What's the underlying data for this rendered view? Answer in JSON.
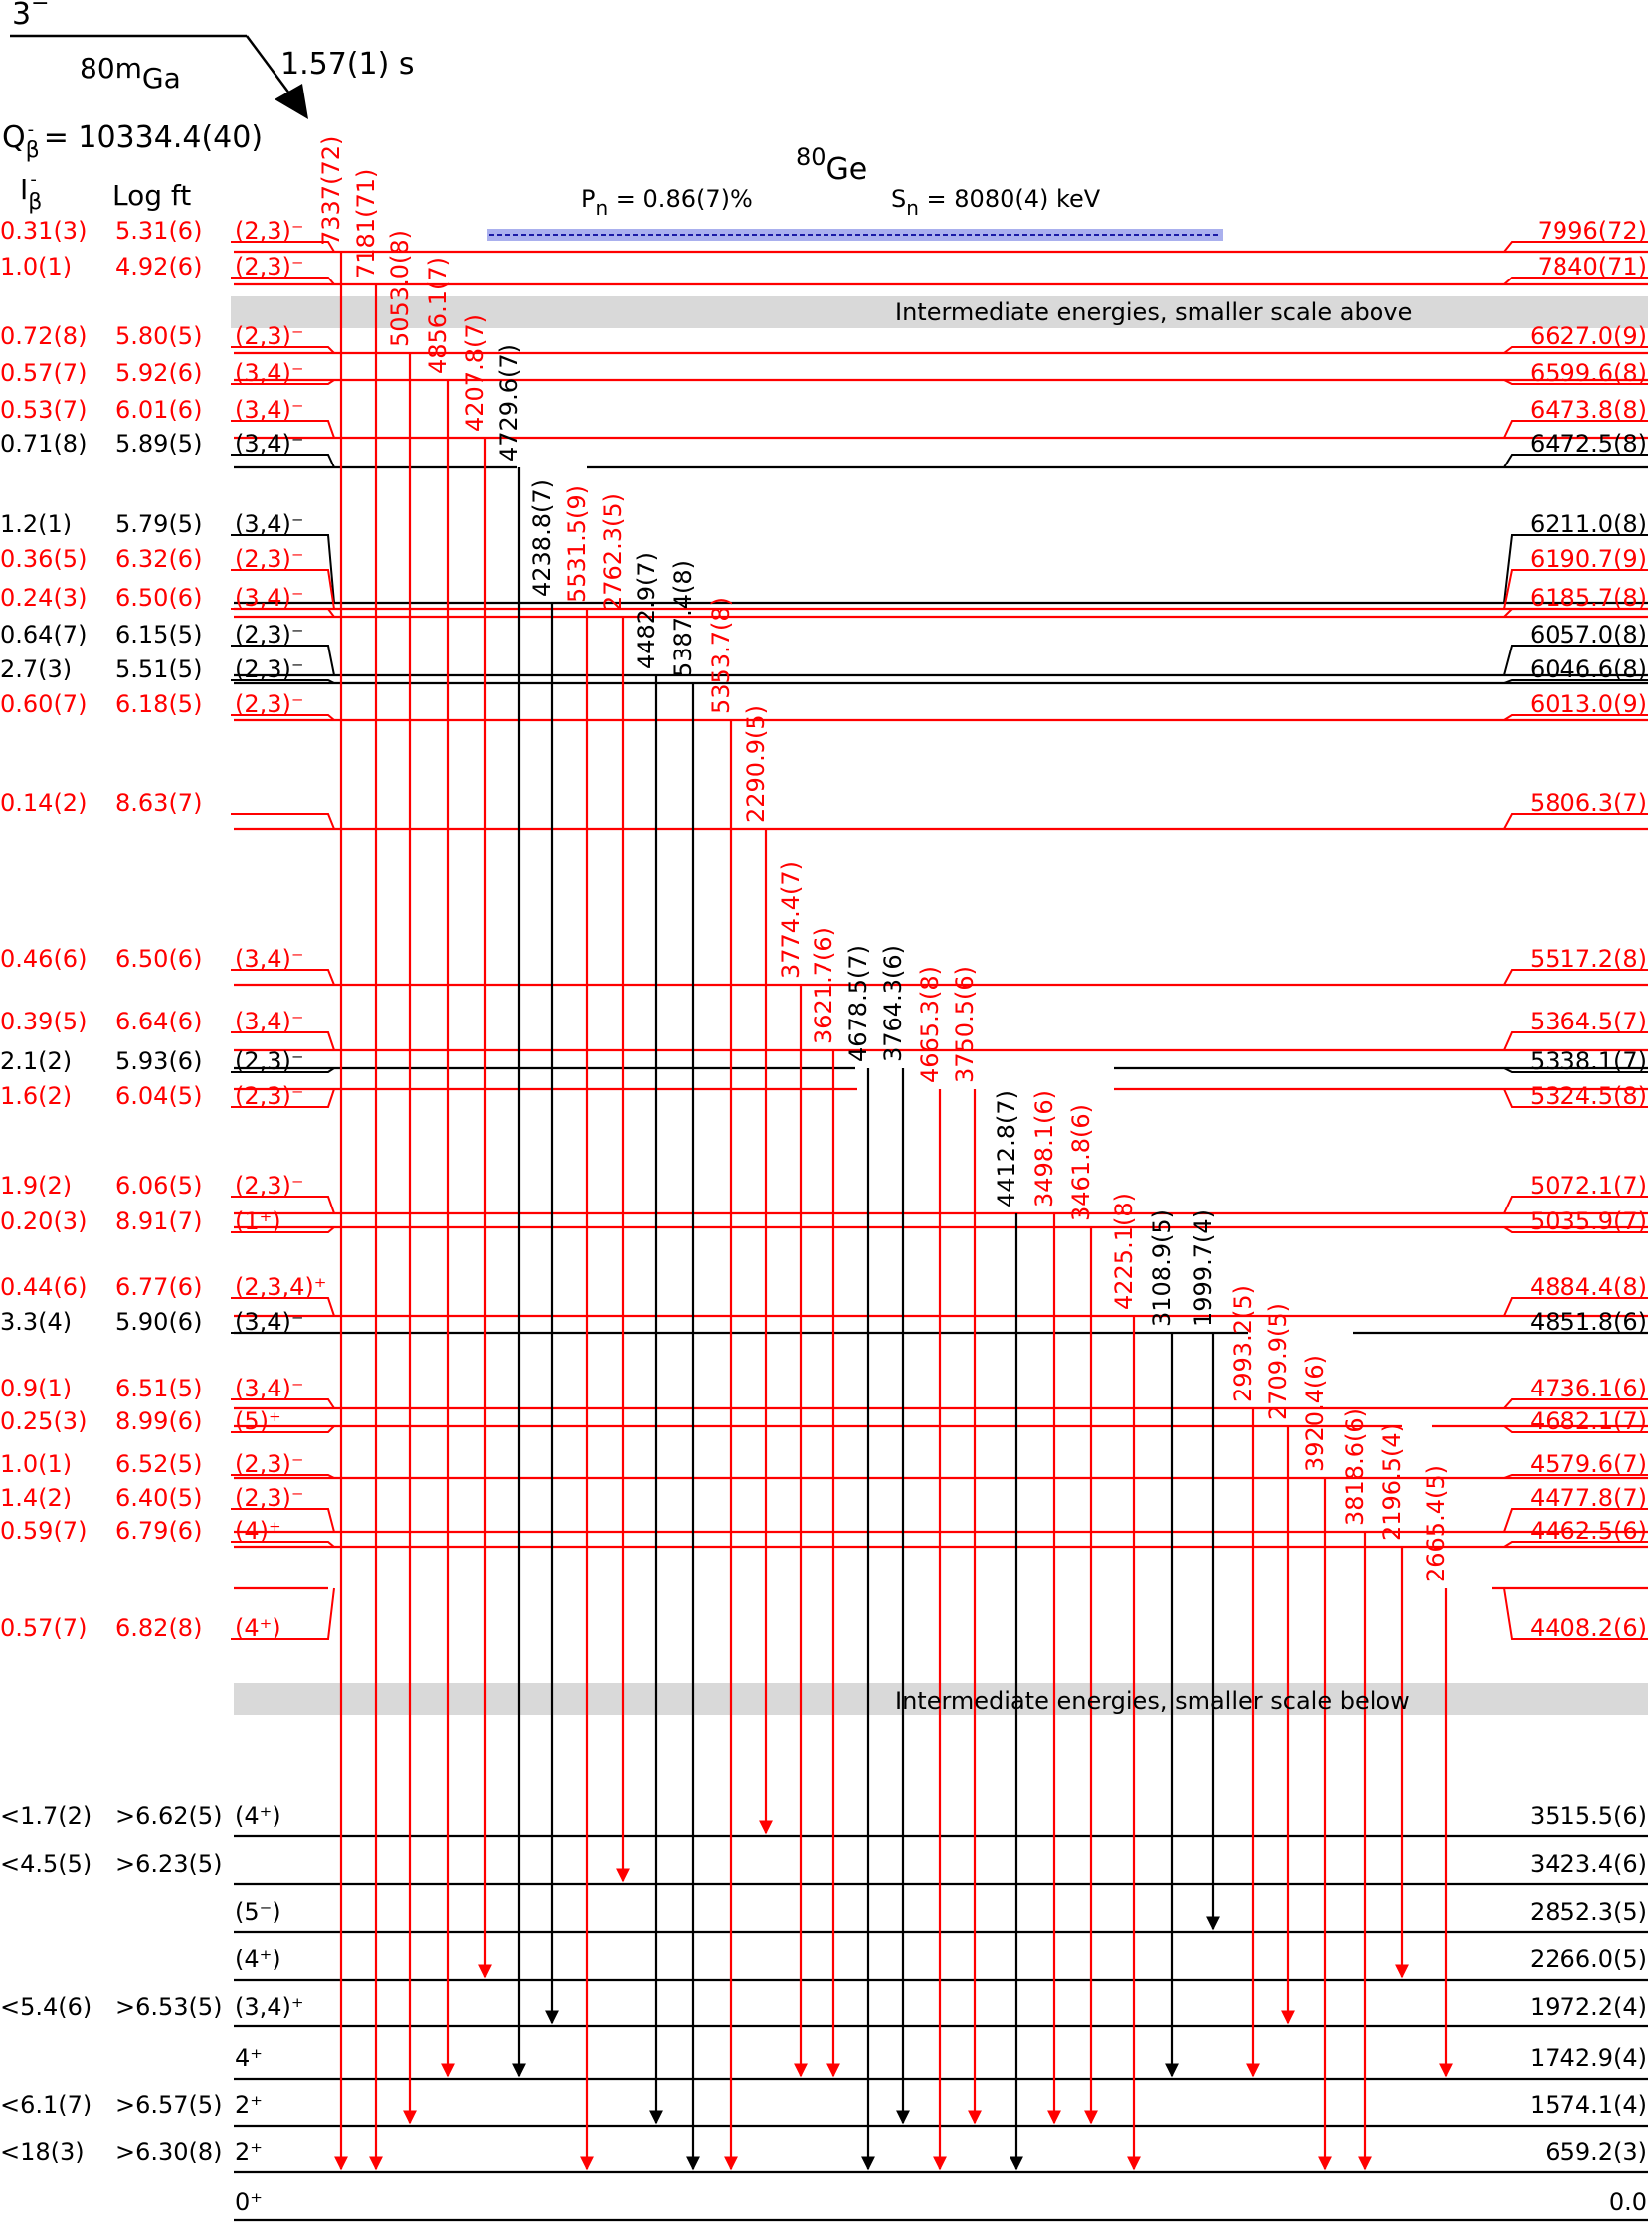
{
  "parent": {
    "spin": "3",
    "parity": "−",
    "mass": "80m",
    "element": "Ga",
    "half_life": "1.57(1) s",
    "q_label": "Q",
    "q_sub": "β",
    "q_sup": "-",
    "q_value": " = 10334.4(40)"
  },
  "daughter": {
    "mass": "80",
    "element": "Ge",
    "pn_label": "P",
    "pn_sub": "n",
    "pn_value": " = 0.86(7)%",
    "sn_label": "S",
    "sn_sub": "n",
    "sn_value": " = 8080(4) keV"
  },
  "headers": {
    "ib": "I",
    "ib_sub": "β",
    "ib_sup": "-",
    "logft": "Log ft"
  },
  "break_labels": {
    "upper": "Intermediate energies, smaller scale above",
    "lower": "Intermediate energies, smaller scale below"
  },
  "colors": {
    "new": "#ff0000",
    "known": "#000000",
    "break": "#d9d9d9",
    "sn_band": "#aab0ee",
    "sn_line": "#1a1aa6"
  },
  "levels": [
    {
      "energy": "7996(72)",
      "ib": "0.31(3)",
      "logft": "5.31(6)",
      "jpi": "(2,3)⁻",
      "color": "red"
    },
    {
      "energy": "7840(71)",
      "ib": "1.0(1)",
      "logft": "4.92(6)",
      "jpi": "(2,3)⁻",
      "color": "red"
    },
    {
      "energy": "6627.0(9)",
      "ib": "0.72(8)",
      "logft": "5.80(5)",
      "jpi": "(2,3)⁻",
      "color": "red"
    },
    {
      "energy": "6599.6(8)",
      "ib": "0.57(7)",
      "logft": "5.92(6)",
      "jpi": "(3,4)⁻",
      "color": "red"
    },
    {
      "energy": "6473.8(8)",
      "ib": "0.53(7)",
      "logft": "6.01(6)",
      "jpi": "(3,4)⁻",
      "color": "red"
    },
    {
      "energy": "6472.5(8)",
      "ib": "0.71(8)",
      "logft": "5.89(5)",
      "jpi": "(3,4)⁻",
      "color": "black"
    },
    {
      "energy": "6211.0(8)",
      "ib": "1.2(1)",
      "logft": "5.79(5)",
      "jpi": "(3,4)⁻",
      "color": "black"
    },
    {
      "energy": "6190.7(9)",
      "ib": "0.36(5)",
      "logft": "6.32(6)",
      "jpi": "(2,3)⁻",
      "color": "red"
    },
    {
      "energy": "6185.7(8)",
      "ib": "0.24(3)",
      "logft": "6.50(6)",
      "jpi": "(3,4)⁻",
      "color": "red"
    },
    {
      "energy": "6057.0(8)",
      "ib": "0.64(7)",
      "logft": "6.15(5)",
      "jpi": "(2,3)⁻",
      "color": "black"
    },
    {
      "energy": "6046.6(8)",
      "ib": "2.7(3)",
      "logft": "5.51(5)",
      "jpi": "(2,3)⁻",
      "color": "black"
    },
    {
      "energy": "6013.0(9)",
      "ib": "0.60(7)",
      "logft": "6.18(5)",
      "jpi": "(2,3)⁻",
      "color": "red"
    },
    {
      "energy": "5806.3(7)",
      "ib": "0.14(2)",
      "logft": "8.63(7)",
      "jpi": "",
      "color": "red"
    },
    {
      "energy": "5517.2(8)",
      "ib": "0.46(6)",
      "logft": "6.50(6)",
      "jpi": "(3,4)⁻",
      "color": "red"
    },
    {
      "energy": "5364.5(7)",
      "ib": "0.39(5)",
      "logft": "6.64(6)",
      "jpi": "(3,4)⁻",
      "color": "red"
    },
    {
      "energy": "5338.1(7)",
      "ib": "2.1(2)",
      "logft": "5.93(6)",
      "jpi": "(2,3)⁻",
      "color": "black"
    },
    {
      "energy": "5324.5(8)",
      "ib": "1.6(2)",
      "logft": "6.04(5)",
      "jpi": "(2,3)⁻",
      "color": "red"
    },
    {
      "energy": "5072.1(7)",
      "ib": "1.9(2)",
      "logft": "6.06(5)",
      "jpi": "(2,3)⁻",
      "color": "red"
    },
    {
      "energy": "5035.9(7)",
      "ib": "0.20(3)",
      "logft": "8.91(7)",
      "jpi": "(1⁺)",
      "color": "red"
    },
    {
      "energy": "4884.4(8)",
      "ib": "0.44(6)",
      "logft": "6.77(6)",
      "jpi": "(2,3,4)⁺",
      "color": "red"
    },
    {
      "energy": "4851.8(6)",
      "ib": "3.3(4)",
      "logft": "5.90(6)",
      "jpi": "(3,4)⁻",
      "color": "black"
    },
    {
      "energy": "4736.1(6)",
      "ib": "0.9(1)",
      "logft": "6.51(5)",
      "jpi": "(3,4)⁻",
      "color": "red"
    },
    {
      "energy": "4682.1(7)",
      "ib": "0.25(3)",
      "logft": "8.99(6)",
      "jpi": "(5)⁺",
      "color": "red"
    },
    {
      "energy": "4579.6(7)",
      "ib": "1.0(1)",
      "logft": "6.52(5)",
      "jpi": "(2,3)⁻",
      "color": "red"
    },
    {
      "energy": "4477.8(7)",
      "ib": "1.4(2)",
      "logft": "6.40(5)",
      "jpi": "(2,3)⁻",
      "color": "red"
    },
    {
      "energy": "4462.5(6)",
      "ib": "0.59(7)",
      "logft": "6.79(6)",
      "jpi": "(4)⁺",
      "color": "red"
    },
    {
      "energy": "4408.2(6)",
      "ib": "0.57(7)",
      "logft": "6.82(8)",
      "jpi": "(4⁺)",
      "color": "red"
    },
    {
      "energy": "3515.5(6)",
      "ib": "<1.7(2)",
      "logft": ">6.62(5)",
      "jpi": "(4⁺)",
      "color": "black"
    },
    {
      "energy": "3423.4(6)",
      "ib": "<4.5(5)",
      "logft": ">6.23(5)",
      "jpi": "",
      "color": "black"
    },
    {
      "energy": "2852.3(5)",
      "ib": "",
      "logft": "",
      "jpi": "(5⁻)",
      "color": "black"
    },
    {
      "energy": "2266.0(5)",
      "ib": "",
      "logft": "",
      "jpi": "(4⁺)",
      "color": "black"
    },
    {
      "energy": "1972.2(4)",
      "ib": "<5.4(6)",
      "logft": ">6.53(5)",
      "jpi": "(3,4)⁺",
      "color": "black"
    },
    {
      "energy": "1742.9(4)",
      "ib": "",
      "logft": "",
      "jpi": "4⁺",
      "color": "black"
    },
    {
      "energy": "1574.1(4)",
      "ib": "<6.1(7)",
      "logft": ">6.57(5)",
      "jpi": "2⁺",
      "color": "black"
    },
    {
      "energy": "659.2(3)",
      "ib": "<18(3)",
      "logft": ">6.30(8)",
      "jpi": "2⁺",
      "color": "black"
    },
    {
      "energy": "0.0",
      "ib": "",
      "logft": "",
      "jpi": "0⁺",
      "color": "black"
    }
  ],
  "transitions": [
    {
      "label": "7337(72)",
      "from": "7996(72)",
      "to": "659.2(3)",
      "color": "red"
    },
    {
      "label": "7181(71)",
      "from": "7840(71)",
      "to": "659.2(3)",
      "color": "red"
    },
    {
      "label": "5053.0(8)",
      "from": "6627.0(9)",
      "to": "1574.1(4)",
      "color": "red"
    },
    {
      "label": "4856.1(7)",
      "from": "6599.6(8)",
      "to": "1742.9(4)",
      "color": "red"
    },
    {
      "label": "4207.8(7)",
      "from": "6473.8(8)",
      "to": "2266.0(5)",
      "color": "red"
    },
    {
      "label": "4729.6(7)",
      "from": "6472.5(8)",
      "to": "1742.9(4)",
      "color": "black"
    },
    {
      "label": "4238.8(7)",
      "from": "6211.0(8)",
      "to": "1972.2(4)",
      "color": "black"
    },
    {
      "label": "5531.5(9)",
      "from": "6190.7(9)",
      "to": "659.2(3)",
      "color": "red"
    },
    {
      "label": "2762.3(5)",
      "from": "6185.7(8)",
      "to": "3423.4(6)",
      "color": "red"
    },
    {
      "label": "4482.9(7)",
      "from": "6057.0(8)",
      "to": "1574.1(4)",
      "color": "black"
    },
    {
      "label": "5387.4(8)",
      "from": "6046.6(8)",
      "to": "659.2(3)",
      "color": "black"
    },
    {
      "label": "5353.7(8)",
      "from": "6013.0(9)",
      "to": "659.2(3)",
      "color": "red"
    },
    {
      "label": "2290.9(5)",
      "from": "5806.3(7)",
      "to": "3515.5(6)",
      "color": "red"
    },
    {
      "label": "3774.4(7)",
      "from": "5517.2(8)",
      "to": "1742.9(4)",
      "color": "red"
    },
    {
      "label": "3621.7(6)",
      "from": "5364.5(7)",
      "to": "1742.9(4)",
      "color": "red"
    },
    {
      "label": "4678.5(7)",
      "from": "5338.1(7)",
      "to": "659.2(3)",
      "color": "black"
    },
    {
      "label": "3764.3(6)",
      "from": "5338.1(7)",
      "to": "1574.1(4)",
      "color": "black"
    },
    {
      "label": "4665.3(8)",
      "from": "5324.5(8)",
      "to": "659.2(3)",
      "color": "red"
    },
    {
      "label": "3750.5(6)",
      "from": "5324.5(8)",
      "to": "1574.1(4)",
      "color": "red"
    },
    {
      "label": "4412.8(7)",
      "from": "5072.1(7)",
      "to": "659.2(3)",
      "color": "black"
    },
    {
      "label": "3498.1(6)",
      "from": "5072.1(7)",
      "to": "1574.1(4)",
      "color": "red"
    },
    {
      "label": "3461.8(6)",
      "from": "5035.9(7)",
      "to": "1574.1(4)",
      "color": "red"
    },
    {
      "label": "4225.1(8)",
      "from": "4884.4(8)",
      "to": "659.2(3)",
      "color": "red"
    },
    {
      "label": "3108.9(5)",
      "from": "4851.8(6)",
      "to": "1742.9(4)",
      "color": "black"
    },
    {
      "label": "1999.7(4)",
      "from": "4851.8(6)",
      "to": "2852.3(5)",
      "color": "black"
    },
    {
      "label": "2993.2(5)",
      "from": "4736.1(6)",
      "to": "1742.9(4)",
      "color": "red"
    },
    {
      "label": "2709.9(5)",
      "from": "4682.1(7)",
      "to": "1972.2(4)",
      "color": "red"
    },
    {
      "label": "3920.4(6)",
      "from": "4579.6(7)",
      "to": "659.2(3)",
      "color": "red"
    },
    {
      "label": "3818.6(6)",
      "from": "4477.8(7)",
      "to": "659.2(3)",
      "color": "red"
    },
    {
      "label": "2196.5(4)",
      "from": "4462.5(6)",
      "to": "2266.0(5)",
      "color": "red"
    },
    {
      "label": "2665.4(5)",
      "from": "4408.2(6)",
      "to": "1742.9(4)",
      "color": "red"
    }
  ]
}
